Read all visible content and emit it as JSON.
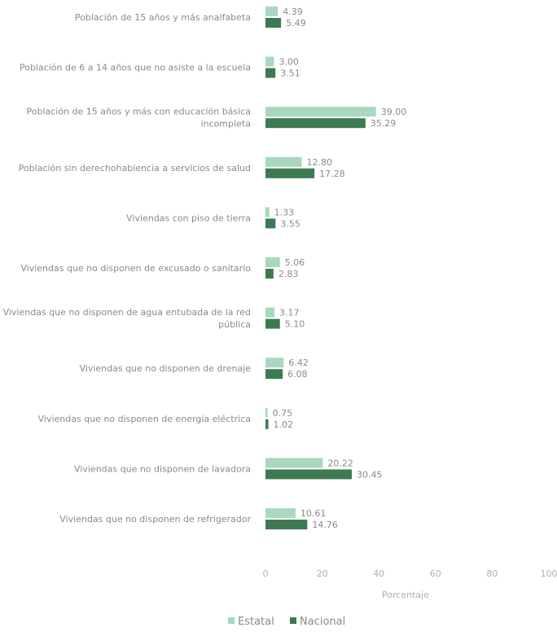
{
  "chart_data": {
    "type": "bar",
    "orientation": "horizontal",
    "categories": [
      [
        "Población de 15 años y más analfabeta"
      ],
      [
        "Población de 6 a 14 años que no asiste a la escuela"
      ],
      [
        "Población de 15 años y más con educación básica",
        "incompleta"
      ],
      [
        "Población sin derechohabiencia a servicios de salud"
      ],
      [
        "Viviendas con piso de tierra"
      ],
      [
        "Viviendas que no disponen de excusado o sanitario"
      ],
      [
        "Viviendas que no disponen de agua entubada de la red",
        "pública"
      ],
      [
        "Viviendas que no disponen de drenaje"
      ],
      [
        "Viviendas que no disponen de energía eléctrica"
      ],
      [
        "Viviendas que no disponen de lavadora"
      ],
      [
        "Viviendas que no disponen de refrigerador"
      ]
    ],
    "series": [
      {
        "name": "Estatal",
        "color": "#a8d8bf",
        "values": [
          4.39,
          3.0,
          39.0,
          12.8,
          1.33,
          5.06,
          3.17,
          6.42,
          0.75,
          20.22,
          10.61
        ],
        "labels": [
          "4.39",
          "3.00",
          "39.00",
          "12.80",
          "1.33",
          "5.06",
          "3.17",
          "6.42",
          "0.75",
          "20.22",
          "10.61"
        ]
      },
      {
        "name": "Nacional",
        "color": "#3d7a52",
        "values": [
          5.49,
          3.51,
          35.29,
          17.28,
          3.55,
          2.83,
          5.1,
          6.08,
          1.02,
          30.45,
          14.76
        ],
        "labels": [
          "5.49",
          "3.51",
          "35.29",
          "17.28",
          "3.55",
          "2.83",
          "5.10",
          "6.08",
          "1.02",
          "30.45",
          "14.76"
        ]
      }
    ],
    "xlabel": "Porcentaje",
    "xlim": [
      0,
      100
    ],
    "xticks": [
      "0",
      "20",
      "40",
      "60",
      "80",
      "100"
    ],
    "xtick_values": [
      0,
      20,
      40,
      60,
      80,
      100
    ],
    "grid": false,
    "legend": "bottom-center"
  }
}
